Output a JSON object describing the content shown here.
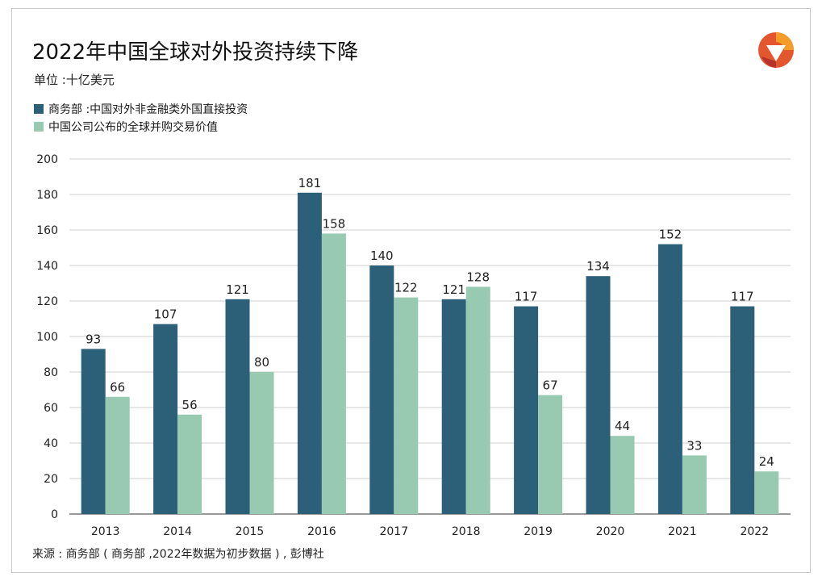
{
  "header": {
    "title": "2022年中国全球对外投资持续下降",
    "unit": "单位 :十亿美元"
  },
  "colors": {
    "series_a": "#2c5f78",
    "series_b": "#97cab0",
    "grid": "#cfcfcf",
    "axis": "#333333"
  },
  "logo": {
    "icon": "brand-logo-icon"
  },
  "source": "来源 : 商务部 ( 商务部 ,2022年数据为初步数据 ) , 彭博社",
  "chart_data": {
    "type": "bar",
    "title": "2022年中国全球对外投资持续下降",
    "categories": [
      "2013",
      "2014",
      "2015",
      "2016",
      "2017",
      "2018",
      "2019",
      "2020",
      "2021",
      "2022"
    ],
    "series": [
      {
        "name": "商务部 :中国对外非金融类外国直接投资",
        "values": [
          93,
          107,
          121,
          181,
          140,
          121,
          117,
          134,
          152,
          117
        ]
      },
      {
        "name": "中国公司公布的全球并购交易价值",
        "values": [
          66,
          56,
          80,
          158,
          122,
          128,
          67,
          44,
          33,
          24
        ]
      }
    ],
    "ylim": [
      0,
      200
    ],
    "yticks": [
      0,
      20,
      40,
      60,
      80,
      100,
      120,
      140,
      160,
      180,
      200
    ],
    "grid": true,
    "legend_position": "top-left"
  }
}
